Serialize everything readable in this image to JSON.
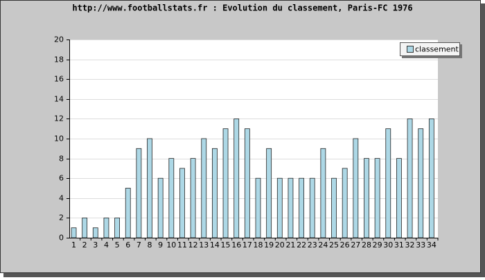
{
  "chart_data": {
    "type": "bar",
    "title": "http://www.footballstats.fr : Evolution du classement, Paris-FC 1976",
    "categories": [
      "1",
      "2",
      "3",
      "4",
      "5",
      "6",
      "7",
      "8",
      "9",
      "10",
      "11",
      "12",
      "13",
      "14",
      "15",
      "16",
      "17",
      "18",
      "19",
      "20",
      "21",
      "22",
      "23",
      "24",
      "25",
      "26",
      "27",
      "28",
      "29",
      "30",
      "31",
      "32",
      "33",
      "34"
    ],
    "series": [
      {
        "name": "classement",
        "color": "#add8e6",
        "values": [
          1,
          2,
          1,
          2,
          2,
          5,
          9,
          10,
          6,
          8,
          7,
          8,
          10,
          9,
          11,
          12,
          11,
          6,
          9,
          6,
          6,
          6,
          6,
          9,
          6,
          7,
          10,
          8,
          8,
          11,
          8,
          12,
          11,
          12
        ]
      }
    ],
    "ylim": [
      0,
      20
    ],
    "yticks": [
      0,
      2,
      4,
      6,
      8,
      10,
      12,
      14,
      16,
      18,
      20
    ],
    "grid": true,
    "legend": "top-right"
  }
}
